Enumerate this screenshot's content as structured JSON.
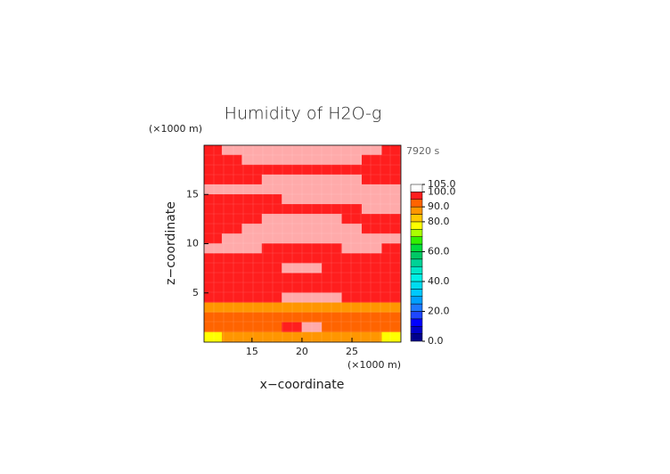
{
  "chart_data": {
    "type": "contour",
    "title": "Humidity of H2O-g",
    "time_label": "7920 s",
    "x_unit": "(×1000 m)",
    "y_unit": "(×1000 m)",
    "x_label": "x−coordinate",
    "y_label": "z−coordinate",
    "xlim": [
      10.2,
      29.9
    ],
    "ylim": [
      0,
      20
    ],
    "xticks": [
      15,
      20,
      25
    ],
    "yticks": [
      5,
      10,
      15
    ],
    "x": [
      11,
      13,
      15,
      17,
      19,
      21,
      23,
      25,
      27,
      29
    ],
    "z": [
      19.5,
      18.5,
      17.5,
      16.5,
      15.5,
      14.5,
      13.5,
      12.5,
      11.5,
      10.5,
      9.5,
      8.5,
      7.5,
      6.5,
      5.5,
      4.5,
      3.5,
      2.5,
      1.5,
      0.5
    ],
    "values": [
      [
        97,
        102,
        102,
        102,
        102,
        102,
        102,
        102,
        102,
        97
      ],
      [
        97,
        97,
        102,
        102,
        102,
        102,
        102,
        102,
        97,
        97
      ],
      [
        97,
        97,
        97,
        97,
        97,
        97,
        97,
        97,
        97,
        97
      ],
      [
        97,
        97,
        97,
        102,
        102,
        102,
        102,
        102,
        97,
        97
      ],
      [
        102,
        102,
        102,
        102,
        102,
        102,
        102,
        102,
        102,
        102
      ],
      [
        97,
        97,
        97,
        97,
        102,
        102,
        102,
        102,
        102,
        102
      ],
      [
        97,
        97,
        97,
        97,
        97,
        97,
        97,
        97,
        102,
        102
      ],
      [
        97,
        97,
        97,
        102,
        102,
        102,
        102,
        97,
        97,
        97
      ],
      [
        97,
        97,
        102,
        102,
        102,
        102,
        102,
        102,
        97,
        97
      ],
      [
        97,
        102,
        102,
        102,
        102,
        102,
        102,
        102,
        102,
        102
      ],
      [
        102,
        102,
        102,
        97,
        97,
        97,
        97,
        102,
        102,
        97
      ],
      [
        97,
        97,
        97,
        97,
        97,
        97,
        97,
        97,
        97,
        97
      ],
      [
        97,
        97,
        97,
        97,
        102,
        102,
        97,
        97,
        97,
        97
      ],
      [
        97,
        97,
        97,
        97,
        97,
        97,
        97,
        97,
        97,
        97
      ],
      [
        97,
        97,
        97,
        97,
        97,
        97,
        97,
        97,
        97,
        97
      ],
      [
        97,
        97,
        97,
        97,
        102,
        102,
        102,
        97,
        97,
        97
      ],
      [
        85,
        85,
        85,
        85,
        85,
        85,
        85,
        85,
        85,
        85
      ],
      [
        92,
        92,
        92,
        92,
        92,
        92,
        92,
        92,
        92,
        92
      ],
      [
        92,
        92,
        92,
        92,
        97,
        102,
        92,
        92,
        92,
        92
      ],
      [
        75,
        85,
        85,
        85,
        85,
        85,
        85,
        85,
        85,
        75
      ]
    ],
    "levels": [
      0,
      5,
      10,
      15,
      20,
      25,
      30,
      35,
      40,
      45,
      50,
      55,
      60,
      65,
      70,
      75,
      80,
      85,
      90,
      95,
      100,
      105
    ],
    "colors": [
      "#00008c",
      "#0000c8",
      "#0000ff",
      "#1e46ff",
      "#1e78ff",
      "#00a0ff",
      "#00c8ff",
      "#00dcf0",
      "#00f0e6",
      "#00e6c8",
      "#00d296",
      "#00c864",
      "#00dc3c",
      "#32f000",
      "#aaff00",
      "#ffff00",
      "#ffc800",
      "#ff9600",
      "#ff6400",
      "#ff1e1e",
      "#ffffff"
    ],
    "above_color": "#ffaaaa",
    "colorbar_ticks": [
      {
        "value": 0,
        "label": "0.0"
      },
      {
        "value": 20,
        "label": "20.0"
      },
      {
        "value": 40,
        "label": "40.0"
      },
      {
        "value": 60,
        "label": "60.0"
      },
      {
        "value": 80,
        "label": "80.0"
      },
      {
        "value": 90,
        "label": "90.0"
      },
      {
        "value": 100,
        "label": "100.0"
      },
      {
        "value": 105,
        "label": "105.0"
      }
    ]
  }
}
